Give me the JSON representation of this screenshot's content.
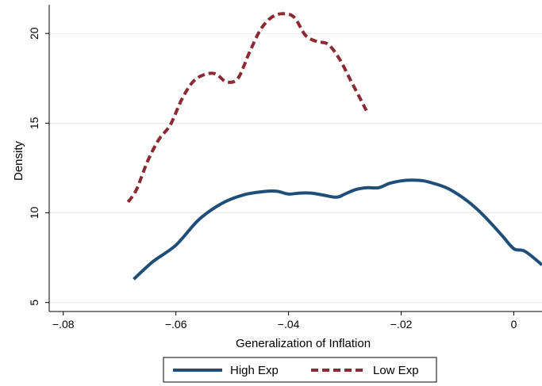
{
  "chart_data": {
    "type": "line",
    "title": "",
    "xlabel": "Generalization of Inflation",
    "ylabel": "Density",
    "xlim": [
      -0.0825,
      0.005
    ],
    "ylim": [
      4.5,
      21.6
    ],
    "grid": true,
    "legend_position": "bottom-center",
    "x_ticks": [
      -0.08,
      -0.06,
      -0.04,
      -0.02,
      0
    ],
    "x_tick_labels": [
      "−.08",
      "−.06",
      "−.04",
      "−.02",
      "0"
    ],
    "y_ticks": [
      5,
      10,
      15,
      20
    ],
    "y_tick_labels": [
      "5",
      "10",
      "15",
      "20"
    ],
    "series": [
      {
        "name": "High Exp",
        "color": "#1f4e79",
        "style": "solid",
        "x": [
          -0.0675,
          -0.064,
          -0.06,
          -0.056,
          -0.052,
          -0.048,
          -0.044,
          -0.042,
          -0.04,
          -0.038,
          -0.036,
          -0.034,
          -0.032,
          -0.031,
          -0.03,
          -0.028,
          -0.026,
          -0.024,
          -0.022,
          -0.02,
          -0.018,
          -0.016,
          -0.014,
          -0.012,
          -0.01,
          -0.008,
          -0.006,
          -0.004,
          -0.002,
          0.0,
          0.002,
          0.005
        ],
        "y": [
          6.3,
          7.3,
          8.2,
          9.6,
          10.5,
          11.0,
          11.2,
          11.2,
          11.05,
          11.1,
          11.1,
          11.0,
          10.88,
          10.9,
          11.05,
          11.3,
          11.4,
          11.4,
          11.65,
          11.78,
          11.82,
          11.78,
          11.62,
          11.4,
          11.05,
          10.6,
          10.05,
          9.4,
          8.7,
          8.0,
          7.85,
          7.1
        ]
      },
      {
        "name": "Low Exp",
        "color": "#8b2a32",
        "style": "dashed",
        "x": [
          -0.0685,
          -0.067,
          -0.065,
          -0.063,
          -0.061,
          -0.059,
          -0.057,
          -0.055,
          -0.053,
          -0.051,
          -0.049,
          -0.047,
          -0.045,
          -0.043,
          -0.041,
          -0.039,
          -0.037,
          -0.035,
          -0.033,
          -0.031,
          -0.029,
          -0.027,
          -0.0262
        ],
        "y": [
          10.6,
          11.3,
          12.9,
          14.1,
          14.9,
          16.3,
          17.3,
          17.7,
          17.75,
          17.3,
          17.5,
          18.9,
          20.2,
          20.9,
          21.1,
          20.9,
          19.9,
          19.55,
          19.4,
          18.6,
          17.4,
          16.2,
          15.7
        ]
      }
    ]
  }
}
